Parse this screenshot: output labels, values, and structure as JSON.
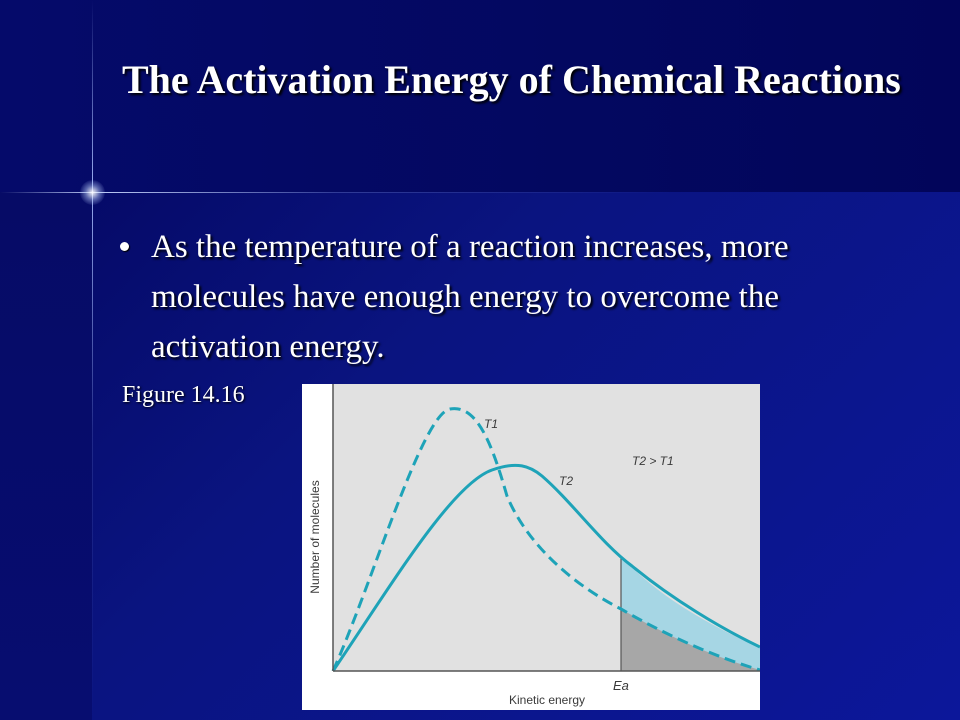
{
  "slide": {
    "title": "The Activation Energy of Chemical Reactions",
    "bullet": "As the temperature of a reaction increases, more molecules have enough energy to overcome the activation energy.",
    "figure_label": "Figure 14.16"
  },
  "diagram": {
    "y_axis_label": "Number of molecules",
    "x_axis_label": "Kinetic energy",
    "curve_t1_label": "T1",
    "curve_t2_label": "T2",
    "relation_label": "T2 > T1",
    "threshold_label": "Ea",
    "colors": {
      "curve": "#1ea3b8",
      "plot_background": "#e1e1e1",
      "area_t2": "#a6d6e4",
      "area_t1": "#a7a7a7",
      "text": "#3a3a3a"
    }
  }
}
